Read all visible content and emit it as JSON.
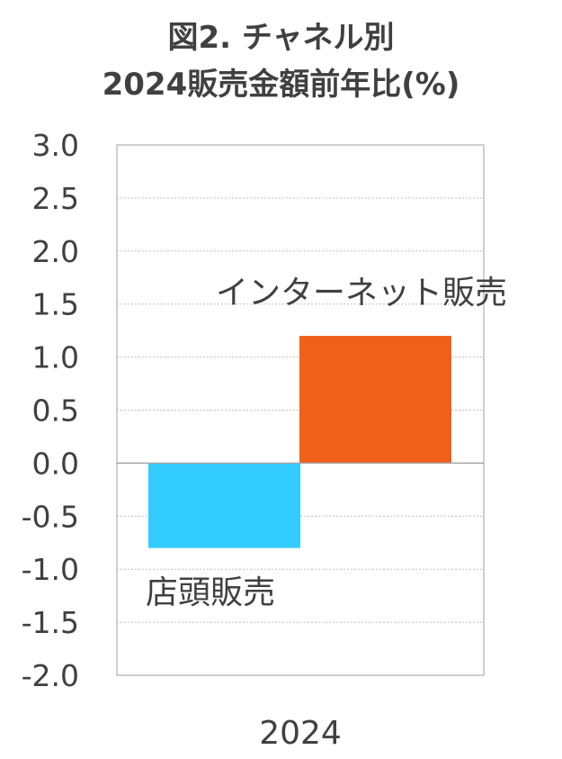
{
  "title_line1": "図2. チャネル別",
  "title_line2": "2024販売金額前年比(%)",
  "chart_data": {
    "type": "bar",
    "categories": [
      "2024"
    ],
    "series": [
      {
        "name": "店頭販売",
        "values": [
          -0.8
        ],
        "color": "#33ccff"
      },
      {
        "name": "インターネット販売",
        "values": [
          1.2
        ],
        "color": "#f06018"
      }
    ],
    "ylim": [
      -2.0,
      3.0
    ],
    "yticks": [
      "3.0",
      "2.5",
      "2.0",
      "1.5",
      "1.0",
      "0.5",
      "0.0",
      "-0.5",
      "-1.0",
      "-1.5",
      "-2.0"
    ],
    "ytick_values": [
      3.0,
      2.5,
      2.0,
      1.5,
      1.0,
      0.5,
      0.0,
      -0.5,
      -1.0,
      -1.5,
      -2.0
    ],
    "grid": true
  }
}
